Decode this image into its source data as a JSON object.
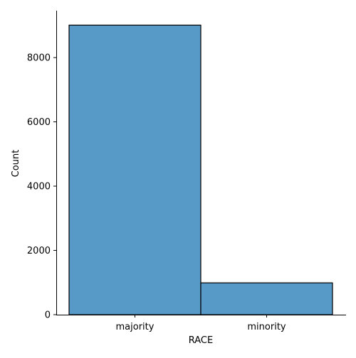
{
  "chart_data": {
    "type": "bar",
    "categories": [
      "majority",
      "minority"
    ],
    "values": [
      9010,
      990
    ],
    "xlabel": "RACE",
    "ylabel": "Count",
    "ylim": [
      0,
      9460
    ],
    "yticks": [
      0,
      2000,
      4000,
      6000,
      8000
    ],
    "ytick_labels": [
      "0",
      "2000",
      "4000",
      "6000",
      "8000"
    ],
    "grid": false,
    "legend": "none",
    "bar_fill": "#5799c7",
    "bar_edge": "#000000"
  }
}
